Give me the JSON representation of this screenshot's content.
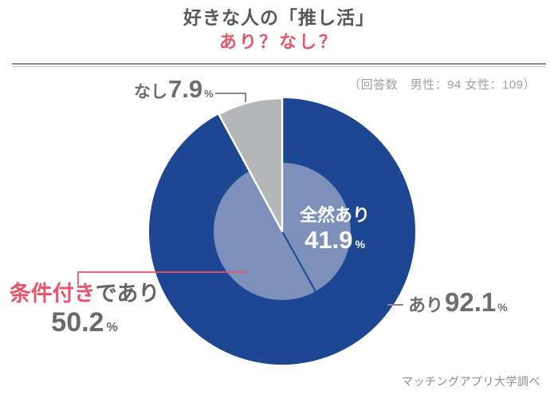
{
  "title": {
    "line1": "好きな人の「推し活」",
    "line2": "あり？なし？"
  },
  "note": "（回答数　男性：94 女性：109）",
  "source": "マッチングアプリ大学調べ",
  "colors": {
    "navy": "#1d4693",
    "inner_blue": "#7e91ba",
    "gray_slice": "#b5b6b8",
    "accent_red": "#e8546a",
    "leader_gray": "#88898b",
    "label_gray": "#6d6e70",
    "title_gray": "#57585a",
    "white": "#ffffff"
  },
  "labels": {
    "nashi": {
      "text": "なし",
      "value": "7.9",
      "unit": "%"
    },
    "zenzen": {
      "text": "全然あり",
      "value": "41.9",
      "unit": "%"
    },
    "jouken": {
      "red": "条件付き",
      "gray": "であり",
      "value": "50.2",
      "unit": "%"
    },
    "ari": {
      "text": "あり",
      "value": "92.1",
      "unit": "%"
    }
  },
  "chart_data": {
    "type": "pie",
    "title": "好きな人の「推し活」あり？なし？",
    "unit": "%",
    "start_angle_deg": 0,
    "direction": "clockwise",
    "legend": false,
    "series": [
      {
        "name": "outer",
        "segments": [
          {
            "label": "あり",
            "value": 92.1,
            "color": "#1d4693"
          },
          {
            "label": "なし",
            "value": 7.9,
            "color": "#b5b6b8"
          }
        ]
      },
      {
        "name": "breakdown_of_ari",
        "color": "#7e91ba",
        "segments": [
          {
            "label": "全然あり",
            "value": 41.9
          },
          {
            "label": "条件付きであり",
            "value": 50.2
          }
        ]
      }
    ],
    "annotations": [
      "（回答数　男性：94 女性：109）",
      "マッチングアプリ大学調べ"
    ]
  }
}
